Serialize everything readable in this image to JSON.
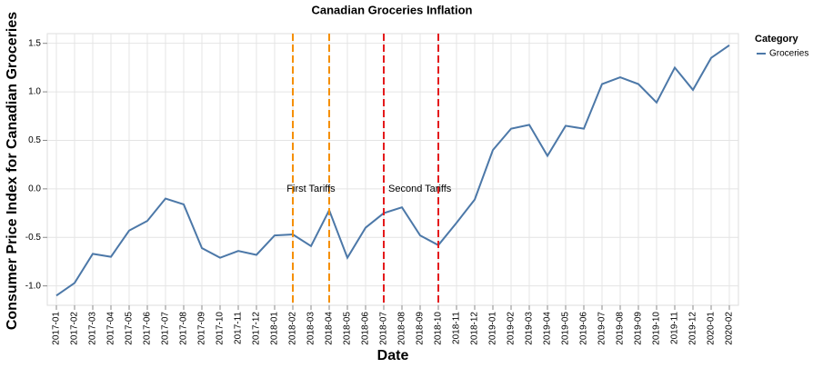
{
  "chart_data": {
    "type": "line",
    "title": "Canadian Groceries Inflation",
    "x_label": "Date",
    "y_label": "Consumer Price Index for Canadian Groceries",
    "categories": [
      "2017-01",
      "2017-02",
      "2017-03",
      "2017-04",
      "2017-05",
      "2017-06",
      "2017-07",
      "2017-08",
      "2017-09",
      "2017-10",
      "2017-11",
      "2017-12",
      "2018-01",
      "2018-02",
      "2018-03",
      "2018-04",
      "2018-05",
      "2018-06",
      "2018-07",
      "2018-08",
      "2018-09",
      "2018-10",
      "2018-11",
      "2018-12",
      "2019-01",
      "2019-02",
      "2019-03",
      "2019-04",
      "2019-05",
      "2019-06",
      "2019-07",
      "2019-08",
      "2019-09",
      "2019-10",
      "2019-11",
      "2019-12",
      "2020-01",
      "2020-02"
    ],
    "series": [
      {
        "name": "Groceries",
        "color": "#4c78a8",
        "values": [
          -1.1,
          -0.97,
          -0.67,
          -0.7,
          -0.43,
          -0.33,
          -0.1,
          -0.16,
          -0.61,
          -0.71,
          -0.64,
          -0.68,
          -0.48,
          -0.47,
          -0.59,
          -0.22,
          -0.71,
          -0.4,
          -0.25,
          -0.19,
          -0.48,
          -0.58,
          -0.35,
          -0.11,
          0.4,
          0.62,
          0.66,
          0.34,
          0.65,
          0.62,
          1.08,
          1.15,
          1.08,
          0.89,
          1.25,
          1.02,
          1.35,
          1.48
        ]
      }
    ],
    "legend_title": "Category",
    "rules": [
      {
        "x": "2018-02",
        "color": "#f58f00"
      },
      {
        "x": "2018-04",
        "color": "#f58f00"
      },
      {
        "x": "2018-07",
        "color": "#e41a1c"
      },
      {
        "x": "2018-10",
        "color": "#e41a1c"
      }
    ],
    "annotations": [
      {
        "text": "First Tariffs",
        "x": "2018-03",
        "y": 0
      },
      {
        "text": "Second Tariffs",
        "x": "2018-07",
        "y": 0
      }
    ],
    "ylim": [
      -1.2,
      1.6
    ],
    "yticks": [
      {
        "value": -1.0,
        "label": "-1.0"
      },
      {
        "value": -0.5,
        "label": "-0.5"
      },
      {
        "value": 0.0,
        "label": "0.0"
      },
      {
        "value": 0.5,
        "label": "0.5"
      },
      {
        "value": 1.0,
        "label": "1.0"
      },
      {
        "value": 1.5,
        "label": "1.5"
      }
    ],
    "grid": true
  }
}
